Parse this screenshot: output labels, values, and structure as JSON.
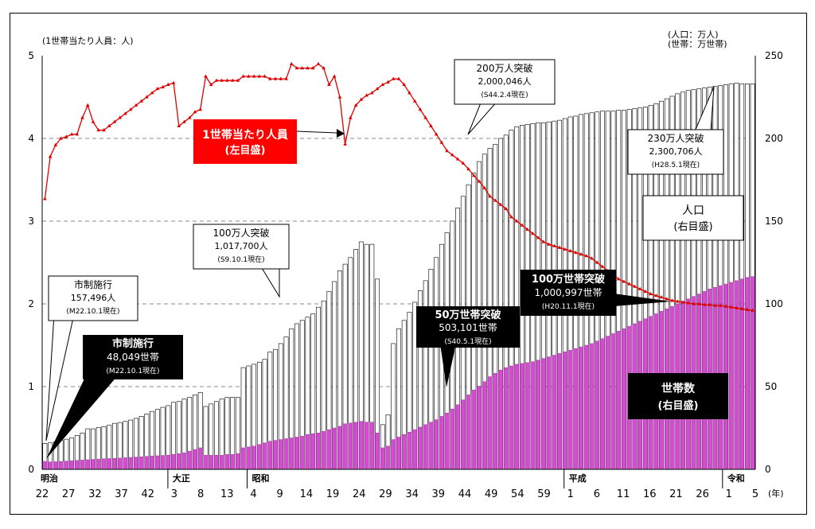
{
  "chart_data": {
    "type": "bar+line",
    "left_unit": "(1世帯当たり人員：人)",
    "right_unit_1": "(人口：万人)",
    "right_unit_2": "(世帯：万世帯)",
    "year_unit": "(年)",
    "left_ticks": [
      "0",
      "1",
      "2",
      "3",
      "4",
      "5"
    ],
    "right_ticks": [
      "0",
      "50",
      "100",
      "150",
      "200",
      "250"
    ],
    "left_axis_range": [
      0,
      5
    ],
    "right_axis_range": [
      0,
      250
    ],
    "x_tick_labels": [
      "22",
      "27",
      "32",
      "37",
      "42",
      "3",
      "8",
      "13",
      "4",
      "9",
      "14",
      "19",
      "24",
      "29",
      "34",
      "39",
      "44",
      "49",
      "54",
      "59",
      "1",
      "6",
      "11",
      "16",
      "21",
      "26",
      "1",
      "5"
    ],
    "eras": [
      "明治",
      "大正",
      "昭和",
      "平成",
      "令和"
    ],
    "series": [
      {
        "name": "人口",
        "axis": "right",
        "unit": "万人",
        "values": [
          15.7,
          16.0,
          16.6,
          17.5,
          18.2,
          19.0,
          20.5,
          22.0,
          24.5,
          24.5,
          25.3,
          25.8,
          26.8,
          27.8,
          28.3,
          29.0,
          29.8,
          30.8,
          32.0,
          33.5,
          35.0,
          36.2,
          37.5,
          38.5,
          40.5,
          41.0,
          42.5,
          43.5,
          45.0,
          46.5,
          38.0,
          39.5,
          41.0,
          42.5,
          43.5,
          43.5,
          43.5,
          61.5,
          62.5,
          63.5,
          64.8,
          66.5,
          71.0,
          72.5,
          76.0,
          80.0,
          85.0,
          88.0,
          90.0,
          92.0,
          94.0,
          98.0,
          101.8,
          107.5,
          113.5,
          120.0,
          124.0,
          128.0,
          133.0,
          137.5,
          136.0,
          136.0,
          115.0,
          27.0,
          33.0,
          76.0,
          85.0,
          90.0,
          95.0,
          101.0,
          108.0,
          114.0,
          121.0,
          128.0,
          136.0,
          143.0,
          150.0,
          158.0,
          165.0,
          172.0,
          179.0,
          186.0,
          190.5,
          194.0,
          196.5,
          200.0,
          202.0,
          205.0,
          207.0,
          208.0,
          208.5,
          209.0,
          209.5,
          209.5,
          210.0,
          210.5,
          211.0,
          212.0,
          213.0,
          213.5,
          214.5,
          215.0,
          215.5,
          216.0,
          216.5,
          216.5,
          216.5,
          217.0,
          217.0,
          217.5,
          218.0,
          218.5,
          219.0,
          220.0,
          221.0,
          222.5,
          224.0,
          225.5,
          227.0,
          228.0,
          229.0,
          229.5,
          230.0,
          230.5,
          231.0,
          231.5,
          232.0,
          232.5,
          233.0,
          233.5,
          233.0,
          233.0,
          233.0
        ]
      },
      {
        "name": "世帯数",
        "axis": "right",
        "unit": "万世帯",
        "values": [
          4.8,
          4.5,
          4.6,
          4.8,
          5.0,
          5.2,
          5.4,
          5.6,
          5.8,
          6.0,
          6.2,
          6.4,
          6.5,
          6.6,
          6.8,
          7.0,
          7.2,
          7.4,
          7.6,
          7.8,
          8.0,
          8.2,
          8.4,
          8.6,
          9.0,
          9.5,
          10.0,
          11.0,
          12.0,
          13.0,
          8.5,
          8.5,
          8.5,
          8.5,
          9.0,
          9.0,
          9.5,
          13.0,
          13.5,
          14.0,
          15.0,
          16.0,
          17.0,
          17.5,
          18.0,
          18.5,
          19.0,
          19.5,
          20.0,
          21.0,
          21.5,
          22.0,
          23.0,
          24.0,
          25.0,
          26.0,
          27.5,
          28.0,
          28.5,
          29.0,
          28.5,
          28.5,
          22.0,
          13.0,
          14.0,
          18.0,
          19.5,
          21.0,
          22.5,
          24.0,
          25.5,
          27.0,
          28.5,
          30.0,
          32.0,
          34.0,
          36.5,
          39.0,
          42.0,
          45.0,
          48.0,
          50.3,
          53.0,
          56.0,
          58.0,
          60.0,
          61.5,
          62.5,
          63.5,
          64.0,
          64.5,
          65.0,
          66.0,
          67.0,
          68.0,
          69.0,
          70.0,
          71.0,
          72.0,
          73.0,
          74.0,
          75.0,
          76.0,
          77.5,
          79.0,
          80.5,
          82.0,
          83.5,
          85.0,
          86.5,
          88.0,
          89.5,
          91.0,
          92.5,
          94.0,
          95.5,
          97.0,
          98.5,
          100.1,
          101.5,
          103.0,
          104.5,
          106.0,
          107.5,
          109.0,
          110.0,
          111.0,
          112.0,
          113.0,
          114.0,
          115.0,
          116.0,
          116.5
        ]
      },
      {
        "name": "1世帯当たり人員",
        "axis": "left",
        "unit": "人",
        "values": [
          3.27,
          3.78,
          3.92,
          4.0,
          4.02,
          4.05,
          4.05,
          4.25,
          4.4,
          4.2,
          4.1,
          4.1,
          4.15,
          4.2,
          4.25,
          4.3,
          4.35,
          4.4,
          4.45,
          4.5,
          4.55,
          4.6,
          4.62,
          4.65,
          4.67,
          4.15,
          4.2,
          4.25,
          4.32,
          4.35,
          4.75,
          4.65,
          4.7,
          4.7,
          4.7,
          4.7,
          4.7,
          4.75,
          4.75,
          4.75,
          4.75,
          4.75,
          4.72,
          4.72,
          4.72,
          4.72,
          4.9,
          4.85,
          4.85,
          4.85,
          4.85,
          4.9,
          4.85,
          4.65,
          4.75,
          4.5,
          3.93,
          4.25,
          4.4,
          4.47,
          4.52,
          4.55,
          4.6,
          4.65,
          4.68,
          4.72,
          4.72,
          4.65,
          4.55,
          4.45,
          4.35,
          4.25,
          4.15,
          4.05,
          3.95,
          3.85,
          3.8,
          3.75,
          3.7,
          3.63,
          3.55,
          3.48,
          3.4,
          3.3,
          3.25,
          3.2,
          3.15,
          3.05,
          3.0,
          2.95,
          2.9,
          2.85,
          2.8,
          2.75,
          2.72,
          2.7,
          2.68,
          2.66,
          2.64,
          2.62,
          2.6,
          2.58,
          2.55,
          2.5,
          2.45,
          2.4,
          2.35,
          2.3,
          2.27,
          2.24,
          2.21,
          2.18,
          2.15,
          2.12,
          2.1,
          2.08,
          2.06,
          2.04,
          2.03,
          2.02,
          2.01,
          2.0,
          2.0,
          1.99,
          1.99,
          1.98,
          1.98,
          1.97,
          1.96,
          1.95,
          1.94,
          1.93,
          1.92,
          1.91,
          1.9
        ]
      }
    ]
  },
  "annotations": {
    "city_pop": {
      "l1": "市制施行",
      "l2": "157,496人",
      "l3": "(M22.10.1現在)"
    },
    "city_hh": {
      "l1": "市制施行",
      "l2": "48,049世帯",
      "l3": "(M22.10.1現在)"
    },
    "pop_1m": {
      "l1": "100万人突破",
      "l2": "1,017,700人",
      "l3": "(S9.10.1現在)"
    },
    "pop_2m": {
      "l1": "200万人突破",
      "l2": "2,000,046人",
      "l3": "(S44.2.4現在)"
    },
    "pop_23m": {
      "l1": "230万人突破",
      "l2": "2,300,706人",
      "l3": "(H28.5.1現在)"
    },
    "hh_500k": {
      "l1": "50万世帯突破",
      "l2": "503,101世帯",
      "l3": "(S40.5.1現在)"
    },
    "hh_1m": {
      "l1": "100万世帯突破",
      "l2": "1,000,997世帯",
      "l3": "(H20.11.1現在)"
    },
    "legend_persons": {
      "l1": "1世帯当たり人員",
      "l2": "(左目盛)"
    },
    "legend_pop": {
      "l1": "人口",
      "l2": "(右目盛)"
    },
    "legend_hh": {
      "l1": "世帯数",
      "l2": "(右目盛)"
    }
  },
  "colors": {
    "household": "#d24dcf",
    "persons_line": "#e00000",
    "population_bar": "#ffffff",
    "legend_red": "#ff0000",
    "legend_black": "#000000"
  }
}
